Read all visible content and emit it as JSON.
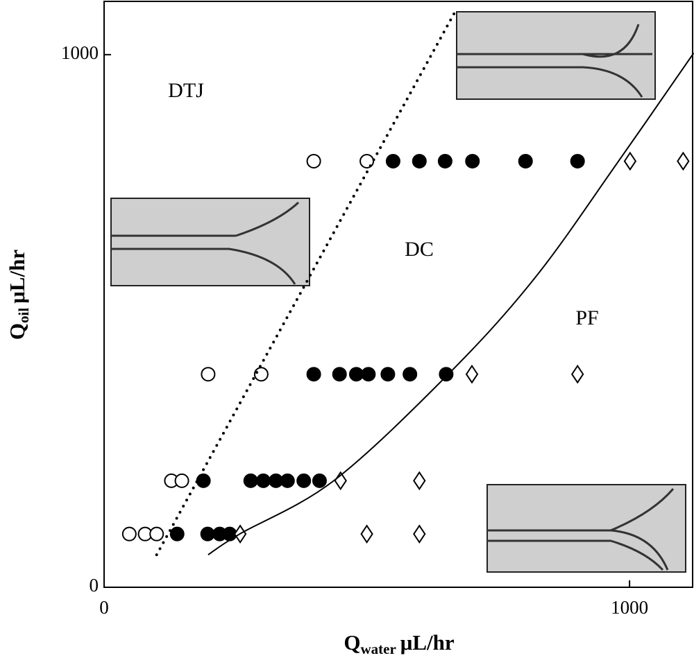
{
  "chart_data": {
    "type": "scatter",
    "xlabel": {
      "main": "Q",
      "sub": "water",
      "unit": "μL/hr"
    },
    "ylabel": {
      "main": "Q",
      "sub": "oil",
      "unit": "μL/hr"
    },
    "xlim": [
      0,
      1120
    ],
    "ylim": [
      0,
      1100
    ],
    "xticks": [
      0,
      1000
    ],
    "yticks": [
      0,
      1000
    ],
    "annotations": [
      "DTJ",
      "DC",
      "PF"
    ],
    "series": [
      {
        "marker": "open-circle",
        "color": "#000000",
        "x": [
          48,
          78,
          100,
          128,
          148,
          198,
          299,
          399,
          500
        ],
        "values": [
          100,
          100,
          100,
          200,
          200,
          400,
          400,
          800,
          800
        ]
      },
      {
        "marker": "filled-circle",
        "color": "#000000",
        "x": [
          139,
          197,
          220,
          239,
          189,
          279,
          303,
          327,
          349,
          380,
          410,
          399,
          448,
          480,
          503,
          540,
          582,
          651,
          550,
          600,
          649,
          701,
          802,
          901
        ],
        "values": [
          100,
          100,
          100,
          100,
          200,
          200,
          200,
          200,
          200,
          200,
          200,
          400,
          400,
          400,
          400,
          400,
          400,
          400,
          800,
          800,
          800,
          800,
          800,
          800
        ]
      },
      {
        "marker": "diamond",
        "color": "#000000",
        "x": [
          259,
          500,
          600,
          450,
          600,
          700,
          901,
          1001,
          1102
        ],
        "values": [
          100,
          100,
          100,
          200,
          200,
          400,
          400,
          800,
          800
        ]
      },
      {
        "marker": "dotted-line",
        "color": "#000000",
        "x": [
          100,
          671
        ],
        "values": [
          61,
          1086
        ]
      },
      {
        "marker": "solid-line",
        "color": "#000000",
        "x": [
          198,
          258,
          437,
          655,
          820,
          979,
          1122
        ],
        "values": [
          61,
          100,
          200,
          400,
          581,
          800,
          1003
        ]
      }
    ]
  }
}
